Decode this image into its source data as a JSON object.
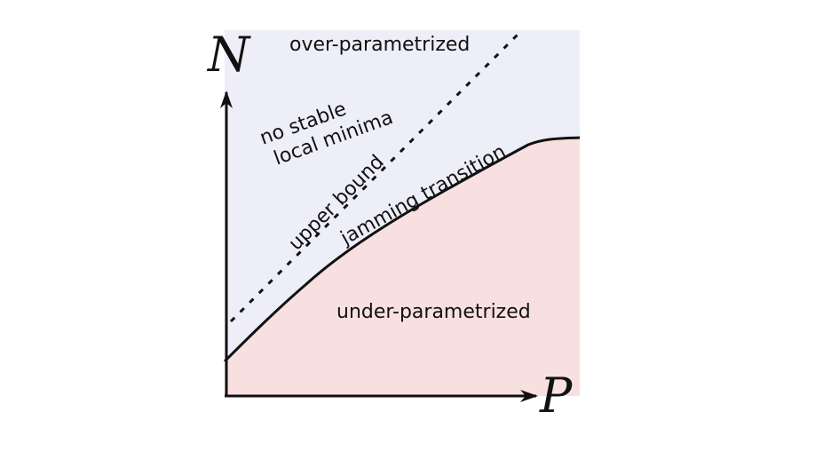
{
  "diagram": {
    "axes": {
      "y_label": "N",
      "x_label": "P"
    },
    "regions": {
      "over": "over-parametrized",
      "under": "under-parametrized"
    },
    "annotations": {
      "no_stable_line1": "no stable",
      "no_stable_line2": "local minima",
      "upper_bound": "upper bound",
      "jamming": "jamming transition"
    },
    "colors": {
      "over_region": "#eeeef9",
      "under_region": "#f9e0e0",
      "ink": "#111111"
    }
  }
}
